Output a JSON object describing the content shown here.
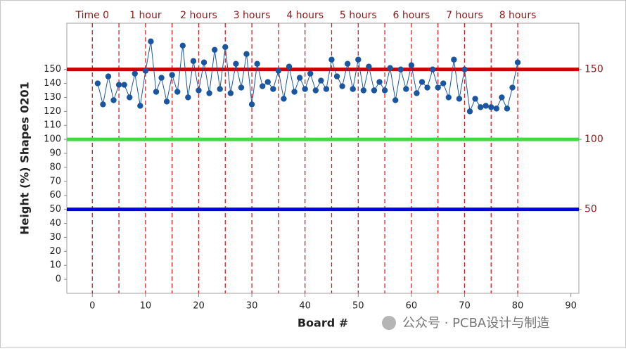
{
  "chart_data": {
    "type": "line",
    "ylabel": "Height (%) Shapes 0201",
    "xlabel": "Board #",
    "watermark": "公众号 · PCBA设计与制造",
    "xlim": [
      -4.8,
      91.5
    ],
    "xticks": [
      0,
      10,
      20,
      30,
      40,
      50,
      60,
      70,
      80,
      90
    ],
    "ylim": [
      -10,
      183
    ],
    "yticks": [
      0,
      10,
      20,
      30,
      40,
      50,
      60,
      70,
      80,
      90,
      100,
      110,
      120,
      130,
      140,
      150
    ],
    "y2lim": [
      -10,
      183
    ],
    "y2ticks": [
      50,
      100,
      150
    ],
    "reference_lines": [
      {
        "value": 150,
        "color": "#cc0000"
      },
      {
        "value": 100,
        "color": "#3ddc3d"
      },
      {
        "value": 50,
        "color": "#0000e6"
      }
    ],
    "vlines": [
      0,
      5,
      10,
      15,
      20,
      25,
      30,
      35,
      40,
      45,
      50,
      55,
      60,
      65,
      70,
      75,
      80
    ],
    "vline_color": "#d62020",
    "top_labels": [
      {
        "value": 0,
        "label": "Time 0"
      },
      {
        "value": 10,
        "label": "1 hour"
      },
      {
        "value": 20,
        "label": "2 hours"
      },
      {
        "value": 30,
        "label": "3 hours"
      },
      {
        "value": 40,
        "label": "4 hours"
      },
      {
        "value": 50,
        "label": "5 hours"
      },
      {
        "value": 60,
        "label": "6 hours"
      },
      {
        "value": 70,
        "label": "7 hours"
      },
      {
        "value": 80,
        "label": "8 hours"
      }
    ],
    "series": [
      {
        "color": "#1a56a0",
        "x": [
          1,
          2,
          3,
          4,
          5,
          6,
          7,
          8,
          9,
          10,
          11,
          12,
          13,
          14,
          15,
          16,
          17,
          18,
          19,
          20,
          21,
          22,
          23,
          24,
          25,
          26,
          27,
          28,
          29,
          30,
          31,
          32,
          33,
          34,
          35,
          36,
          37,
          38,
          39,
          40,
          41,
          42,
          43,
          44,
          45,
          46,
          47,
          48,
          49,
          50,
          51,
          52,
          53,
          54,
          55,
          56,
          57,
          58,
          59,
          60,
          61,
          62,
          63,
          64,
          65,
          66,
          67,
          68,
          69,
          70,
          71,
          72,
          73,
          74,
          75,
          76,
          77,
          78,
          79,
          80
        ],
        "values": [
          140,
          125,
          145,
          128,
          139,
          139,
          130,
          147,
          124,
          149,
          170,
          134,
          144,
          127,
          146,
          134,
          167,
          130,
          156,
          135,
          155,
          133,
          164,
          136,
          166,
          133,
          154,
          137,
          161,
          125,
          154,
          138,
          141,
          136,
          149,
          129,
          152,
          134,
          144,
          136,
          147,
          135,
          142,
          136,
          157,
          145,
          138,
          154,
          136,
          157,
          135,
          152,
          135,
          141,
          135,
          151,
          128,
          150,
          136,
          153,
          133,
          141,
          137,
          150,
          137,
          140,
          130,
          157,
          129,
          150,
          120,
          129,
          123,
          124,
          123,
          122,
          130,
          122,
          137,
          155
        ]
      }
    ]
  }
}
